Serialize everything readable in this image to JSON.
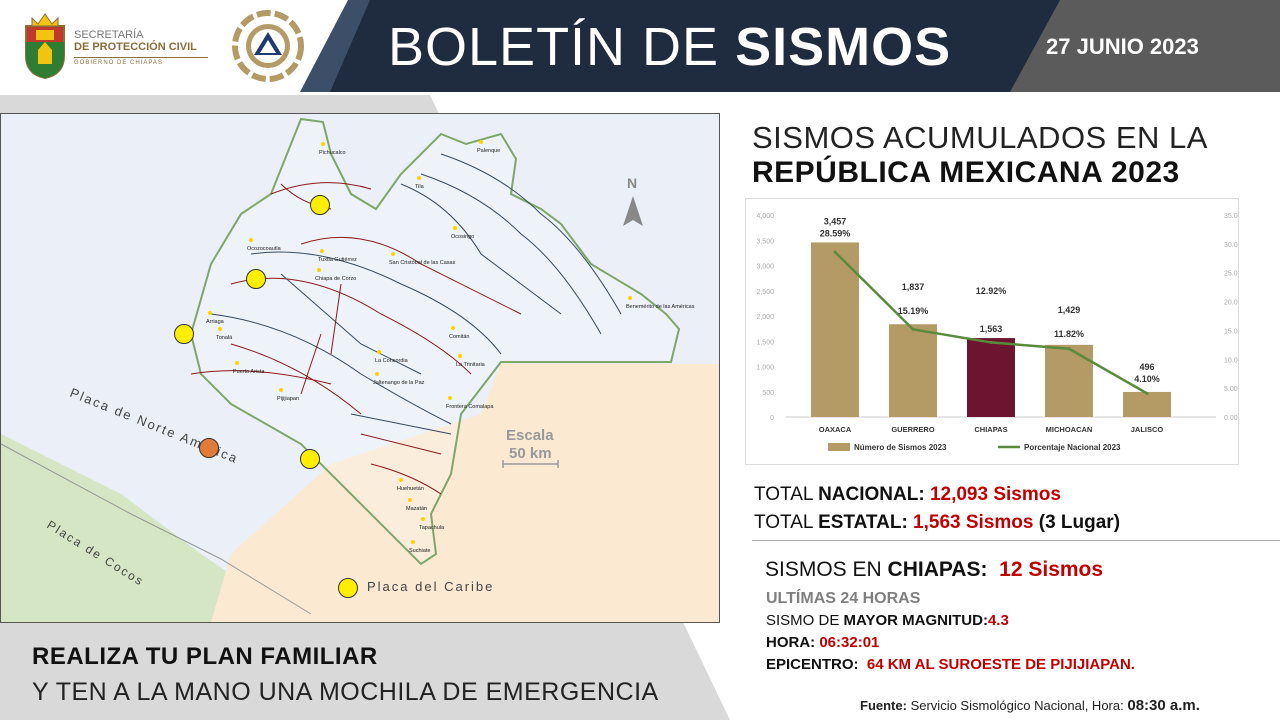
{
  "header": {
    "org_line1": "SECRETARÍA",
    "org_line2": "DE PROTECCIÓN CIVIL",
    "org_line3": "GOBIERNO DE CHIAPAS",
    "title_light": "BOLETÍN DE ",
    "title_bold": "SISMOS",
    "date": "27 JUNIO 2023"
  },
  "map": {
    "north_label": "N",
    "scale_label": "Escala",
    "scale_value": "50 km",
    "plates": {
      "north_america": "Placa de Norte América",
      "cocos": "Placa de Cocos",
      "caribe": "Placa del Caribe"
    },
    "cities": [
      {
        "name": "Pichucalco"
      },
      {
        "name": "Palenque"
      },
      {
        "name": "Tila"
      },
      {
        "name": "Ocosingo"
      },
      {
        "name": "Ocozocoautla"
      },
      {
        "name": "Tuxtla Gutiérrez"
      },
      {
        "name": "Chiapa de Corzo"
      },
      {
        "name": "San Cristóbal de las Casas"
      },
      {
        "name": "Benemérito de las Américas"
      },
      {
        "name": "Arriaga"
      },
      {
        "name": "Tonalá"
      },
      {
        "name": "Comitán"
      },
      {
        "name": "La Concordia"
      },
      {
        "name": "La Trinitaria"
      },
      {
        "name": "Puerto Arista"
      },
      {
        "name": "Jaltenango de la Paz"
      },
      {
        "name": "Frontera Comalapa"
      },
      {
        "name": "Pijijiapan"
      },
      {
        "name": "Huehuetán"
      },
      {
        "name": "Mazatán"
      },
      {
        "name": "Tapachula"
      },
      {
        "name": "Suchiate"
      }
    ],
    "quake_colors": {
      "normal": "#ffee00",
      "max": "#e07b39"
    }
  },
  "colors": {
    "bar": "#b49a64",
    "bar_highlight": "#6d1431",
    "line": "#5a8a3c",
    "accent_red": "#c00000"
  },
  "right": {
    "title_line1": "SISMOS ACUMULADOS EN LA",
    "title_line2": "REPÚBLICA MEXICANA 2023",
    "total_nacional_label": "TOTAL ",
    "total_nacional_bold": "NACIONAL:",
    "total_nacional_value": "12,093 Sismos",
    "total_estatal_label": "TOTAL ",
    "total_estatal_bold": "ESTATAL:",
    "total_estatal_value": "1,563 Sismos",
    "total_estatal_rank": "(3 Lugar)",
    "chiapas_label": "SISMOS EN ",
    "chiapas_bold": "CHIAPAS:",
    "chiapas_value": "12 Sismos",
    "last24": "ULTÍMAS 24 HORAS",
    "mayor_label": "SISMO DE ",
    "mayor_bold": "MAYOR MAGNITUD:",
    "mayor_value": "4.3",
    "hora_label": "HORA:",
    "hora_value": "06:32:01",
    "epi_label": "EPICENTRO:",
    "epi_value": "64 KM AL SUROESTE DE PIJIJIAPAN.",
    "source_label": "Fuente:",
    "source_text": "Servicio Sismológico Nacional, Hora:",
    "source_time": "08:30 a.m."
  },
  "footer": {
    "line1": "REALIZA TU PLAN FAMILIAR",
    "line2": "Y TEN A LA MANO UNA MOCHILA DE EMERGENCIA"
  },
  "chart_data": {
    "type": "bar",
    "categories": [
      "OAXACA",
      "GUERRERO",
      "CHIAPAS",
      "MICHOACAN",
      "JALISCO"
    ],
    "series": [
      {
        "name": "Número de Sismos 2023",
        "type": "bar",
        "values": [
          3457,
          1837,
          1563,
          1429,
          496
        ],
        "labels": [
          "3,457",
          "1,837",
          "1,563",
          "1,429",
          "496"
        ]
      },
      {
        "name": "Porcentaje Nacional 2023",
        "type": "line",
        "values": [
          28.59,
          15.19,
          12.92,
          11.82,
          4.1
        ],
        "labels": [
          "28.59%",
          "15.19%",
          "12.92%",
          "11.82%",
          "4.10%"
        ]
      }
    ],
    "highlight_category": "CHIAPAS",
    "ylim": [
      0,
      4000
    ],
    "y_ticks": [
      "0",
      "500",
      "1,000",
      "1,500",
      "2,000",
      "2,500",
      "3,000",
      "3,500",
      "4,000"
    ],
    "y2lim": [
      0,
      35
    ],
    "y2_ticks": [
      "0.00%",
      "5.00%",
      "10.00%",
      "15.00%",
      "20.00%",
      "25.00%",
      "30.00%",
      "35.00%"
    ],
    "legend": "bottom"
  }
}
